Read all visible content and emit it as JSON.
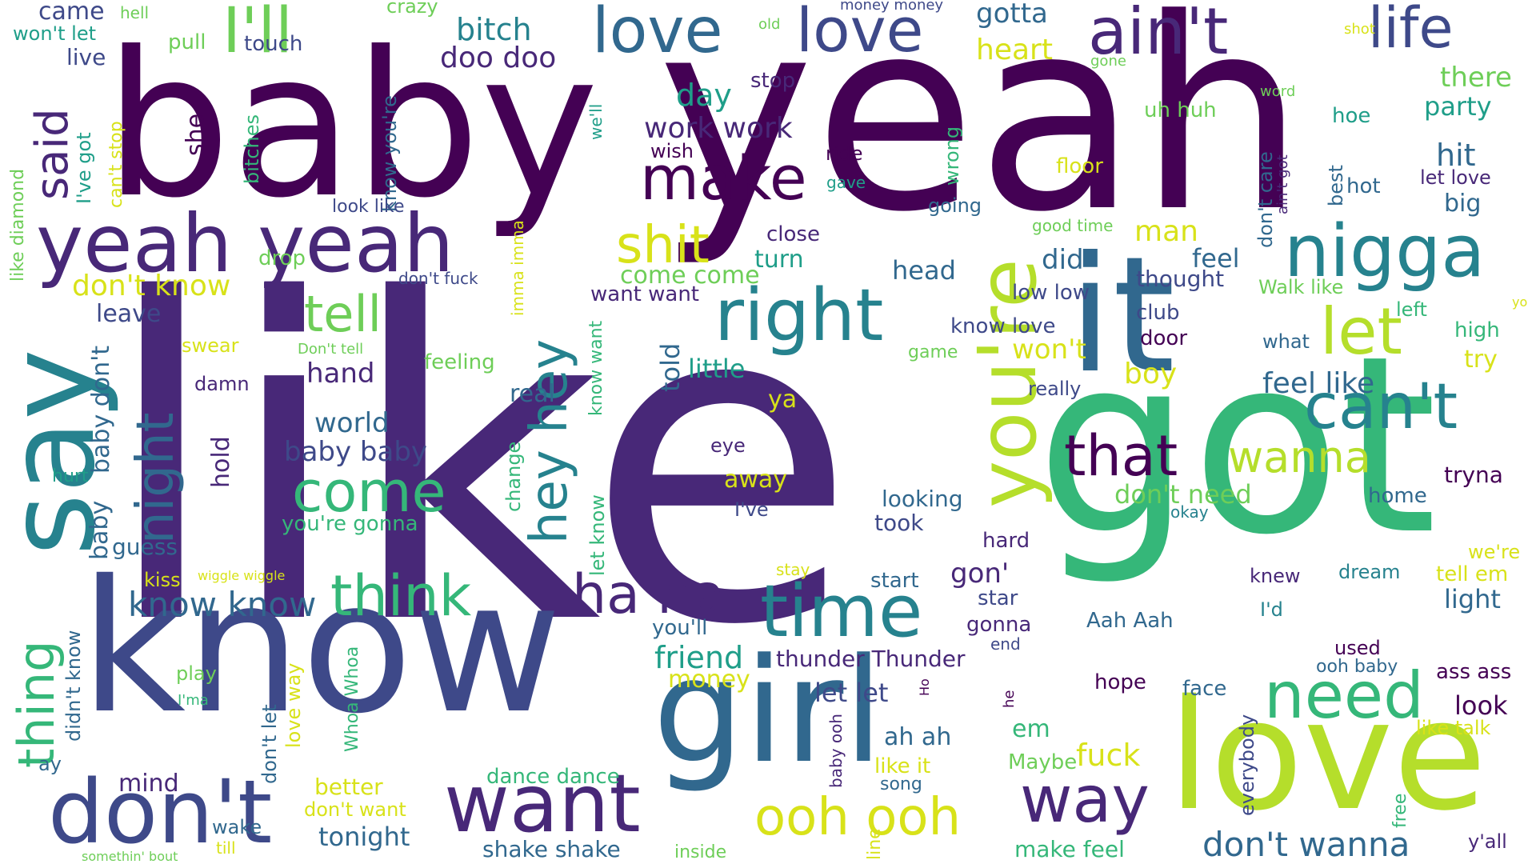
{
  "palette": {
    "d1": "#440154",
    "d2": "#482878",
    "p1": "#3e4989",
    "b1": "#31688e",
    "b2": "#26828e",
    "t1": "#1f9e89",
    "g1": "#35b779",
    "g2": "#6ece58",
    "y1": "#b5de2b",
    "y2": "#d8e219"
  },
  "words": [
    {
      "text": "like",
      "c": "d2",
      "size": 552,
      "rot": 0
    },
    {
      "text": "yeah",
      "c": "d1",
      "size": 330,
      "rot": 0
    },
    {
      "text": "baby",
      "c": "d1",
      "size": 250,
      "rot": 0
    },
    {
      "text": "got",
      "c": "g1",
      "size": 306,
      "rot": 0
    },
    {
      "text": "know",
      "c": "p1",
      "size": 228,
      "rot": 0
    },
    {
      "text": "girl",
      "c": "b1",
      "size": 180,
      "rot": 0
    },
    {
      "text": "love",
      "c": "y1",
      "size": 190,
      "rot": 0
    },
    {
      "text": "say",
      "c": "b2",
      "size": 150,
      "rot": -90
    },
    {
      "text": "it",
      "c": "b1",
      "size": 200,
      "rot": 0
    },
    {
      "text": "you're",
      "c": "y1",
      "size": 100,
      "rot": -90
    },
    {
      "text": "yeah yeah",
      "c": "d2",
      "size": 100,
      "rot": 0
    },
    {
      "text": "don't",
      "c": "p1",
      "size": 110,
      "rot": 0
    },
    {
      "text": "want",
      "c": "d2",
      "size": 100,
      "rot": 0
    },
    {
      "text": "right",
      "c": "b2",
      "size": 90,
      "rot": 0
    },
    {
      "text": "time",
      "c": "b2",
      "size": 90,
      "rot": 0
    },
    {
      "text": "nigga",
      "c": "b2",
      "size": 90,
      "rot": 0
    },
    {
      "text": "need",
      "c": "g1",
      "size": 80,
      "rot": 0
    },
    {
      "text": "way",
      "c": "d2",
      "size": 80,
      "rot": 0
    },
    {
      "text": "make",
      "c": "d1",
      "size": 76,
      "rot": 0
    },
    {
      "text": "ain't",
      "c": "d2",
      "size": 80,
      "rot": 0
    },
    {
      "text": "life",
      "c": "p1",
      "size": 70,
      "rot": 0
    },
    {
      "text": "love",
      "c": "b1",
      "size": 78,
      "rot": 0
    },
    {
      "text": "love",
      "c": "p1",
      "size": 76,
      "rot": 0
    },
    {
      "text": "I'll",
      "c": "g2",
      "size": 78,
      "rot": 0
    },
    {
      "text": "can't",
      "c": "b2",
      "size": 78,
      "rot": 0
    },
    {
      "text": "let",
      "c": "y1",
      "size": 80,
      "rot": 0
    },
    {
      "text": "that",
      "c": "d1",
      "size": 70,
      "rot": 0
    },
    {
      "text": "come",
      "c": "g1",
      "size": 70,
      "rot": 0
    },
    {
      "text": "think",
      "c": "g1",
      "size": 70,
      "rot": 0
    },
    {
      "text": "ha ha",
      "c": "d2",
      "size": 68,
      "rot": 0
    },
    {
      "text": "hey hey",
      "c": "b2",
      "size": 64,
      "rot": -90
    },
    {
      "text": "night",
      "c": "b1",
      "size": 64,
      "rot": -90
    },
    {
      "text": "thing",
      "c": "g1",
      "size": 62,
      "rot": -90
    },
    {
      "text": "ooh ooh",
      "c": "y2",
      "size": 64,
      "rot": 0
    },
    {
      "text": "shit",
      "c": "y2",
      "size": 64,
      "rot": 0
    },
    {
      "text": "tell",
      "c": "g2",
      "size": 62,
      "rot": 0
    },
    {
      "text": "said",
      "c": "d2",
      "size": 56,
      "rot": -90
    },
    {
      "text": "wanna",
      "c": "y1",
      "size": 54,
      "rot": 0
    },
    {
      "text": "don't wanna",
      "c": "b1",
      "size": 42,
      "rot": 0
    },
    {
      "text": "gotta",
      "c": "b1",
      "size": 34,
      "rot": 0
    },
    {
      "text": "heart",
      "c": "y2",
      "size": 36,
      "rot": 0
    },
    {
      "text": "there",
      "c": "g2",
      "size": 34,
      "rot": 0
    },
    {
      "text": "party",
      "c": "t1",
      "size": 32,
      "rot": 0
    },
    {
      "text": "hit",
      "c": "b1",
      "size": 38,
      "rot": 0
    },
    {
      "text": "hoe",
      "c": "t1",
      "size": 26,
      "rot": 0
    },
    {
      "text": "let love",
      "c": "d2",
      "size": 24,
      "rot": 0
    },
    {
      "text": "big",
      "c": "b1",
      "size": 30,
      "rot": 0
    },
    {
      "text": "hot",
      "c": "b1",
      "size": 26,
      "rot": 0
    },
    {
      "text": "tryna",
      "c": "d1",
      "size": 28,
      "rot": 0
    },
    {
      "text": "home",
      "c": "b1",
      "size": 26,
      "rot": 0
    },
    {
      "text": "don't need",
      "c": "g2",
      "size": 32,
      "rot": 0
    },
    {
      "text": "feel like",
      "c": "b1",
      "size": 36,
      "rot": 0
    },
    {
      "text": "won't",
      "c": "y2",
      "size": 34,
      "rot": 0
    },
    {
      "text": "boy",
      "c": "y2",
      "size": 36,
      "rot": 0
    },
    {
      "text": "did",
      "c": "b1",
      "size": 34,
      "rot": 0
    },
    {
      "text": "feel",
      "c": "b1",
      "size": 32,
      "rot": 0
    },
    {
      "text": "thought",
      "c": "p1",
      "size": 28,
      "rot": 0
    },
    {
      "text": "low low",
      "c": "p1",
      "size": 26,
      "rot": 0
    },
    {
      "text": "club",
      "c": "p1",
      "size": 26,
      "rot": 0
    },
    {
      "text": "door",
      "c": "d1",
      "size": 26,
      "rot": 0
    },
    {
      "text": "know love",
      "c": "p1",
      "size": 26,
      "rot": 0
    },
    {
      "text": "really",
      "c": "p1",
      "size": 24,
      "rot": 0
    },
    {
      "text": "floor",
      "c": "y2",
      "size": 26,
      "rot": 0
    },
    {
      "text": "gave",
      "c": "t1",
      "size": 20,
      "rot": 0
    },
    {
      "text": "going",
      "c": "b1",
      "size": 24,
      "rot": 0
    },
    {
      "text": "good time",
      "c": "g2",
      "size": 20,
      "rot": 0
    },
    {
      "text": "uh huh",
      "c": "g2",
      "size": 26,
      "rot": 0
    },
    {
      "text": "head",
      "c": "b1",
      "size": 32,
      "rot": 0
    },
    {
      "text": "man",
      "c": "y2",
      "size": 36,
      "rot": 0
    },
    {
      "text": "work work",
      "c": "d2",
      "size": 36,
      "rot": 0
    },
    {
      "text": "day",
      "c": "t1",
      "size": 38,
      "rot": 0
    },
    {
      "text": "stop",
      "c": "d2",
      "size": 26,
      "rot": 0
    },
    {
      "text": "wish",
      "c": "d1",
      "size": 24,
      "rot": 0
    },
    {
      "text": "ride",
      "c": "d1",
      "size": 24,
      "rot": 0
    },
    {
      "text": "close",
      "c": "d2",
      "size": 26,
      "rot": 0
    },
    {
      "text": "turn",
      "c": "t1",
      "size": 30,
      "rot": 0
    },
    {
      "text": "come come",
      "c": "g2",
      "size": 30,
      "rot": 0
    },
    {
      "text": "want want",
      "c": "d2",
      "size": 26,
      "rot": 0
    },
    {
      "text": "little",
      "c": "t1",
      "size": 32,
      "rot": 0
    },
    {
      "text": "game",
      "c": "g2",
      "size": 22,
      "rot": 0
    },
    {
      "text": "doo doo",
      "c": "d2",
      "size": 36,
      "rot": 0
    },
    {
      "text": "bitch",
      "c": "b2",
      "size": 38,
      "rot": 0
    },
    {
      "text": "crazy",
      "c": "g2",
      "size": 24,
      "rot": 0
    },
    {
      "text": "old",
      "c": "g2",
      "size": 18,
      "rot": 0
    },
    {
      "text": "money money",
      "c": "p1",
      "size": 18,
      "rot": 0
    },
    {
      "text": "gone",
      "c": "g2",
      "size": 18,
      "rot": 0
    },
    {
      "text": "shot",
      "c": "y2",
      "size": 18,
      "rot": 0
    },
    {
      "text": "word",
      "c": "g2",
      "size": 18,
      "rot": 0
    },
    {
      "text": "touch",
      "c": "p1",
      "size": 26,
      "rot": 0
    },
    {
      "text": "pull",
      "c": "g2",
      "size": 26,
      "rot": 0
    },
    {
      "text": "hell",
      "c": "g2",
      "size": 20,
      "rot": 0
    },
    {
      "text": "came",
      "c": "p1",
      "size": 30,
      "rot": 0
    },
    {
      "text": "won't let",
      "c": "t1",
      "size": 24,
      "rot": 0
    },
    {
      "text": "live",
      "c": "p1",
      "size": 28,
      "rot": 0
    },
    {
      "text": "she",
      "c": "d1",
      "size": 30,
      "rot": -90
    },
    {
      "text": "bitches",
      "c": "g1",
      "size": 24,
      "rot": -90
    },
    {
      "text": "can't stop",
      "c": "y2",
      "size": 22,
      "rot": -90
    },
    {
      "text": "I've got",
      "c": "t1",
      "size": 24,
      "rot": -90
    },
    {
      "text": "like diamond",
      "c": "g2",
      "size": 22,
      "rot": -90
    },
    {
      "text": "we'll",
      "c": "t1",
      "size": 20,
      "rot": -90
    },
    {
      "text": "know you're",
      "c": "b1",
      "size": 24,
      "rot": -90
    },
    {
      "text": "imma imma",
      "c": "y2",
      "size": 20,
      "rot": -90
    },
    {
      "text": "look like",
      "c": "p1",
      "size": 22,
      "rot": 0
    },
    {
      "text": "drop",
      "c": "g2",
      "size": 26,
      "rot": 0
    },
    {
      "text": "don't fuck",
      "c": "p1",
      "size": 20,
      "rot": 0
    },
    {
      "text": "don't know",
      "c": "y2",
      "size": 36,
      "rot": 0
    },
    {
      "text": "leave",
      "c": "p1",
      "size": 30,
      "rot": 0
    },
    {
      "text": "swear",
      "c": "y2",
      "size": 24,
      "rot": 0
    },
    {
      "text": "Don't tell",
      "c": "g2",
      "size": 18,
      "rot": 0
    },
    {
      "text": "hand",
      "c": "d2",
      "size": 34,
      "rot": 0
    },
    {
      "text": "feeling",
      "c": "g2",
      "size": 26,
      "rot": 0
    },
    {
      "text": "damn",
      "c": "d2",
      "size": 24,
      "rot": 0
    },
    {
      "text": "real",
      "c": "b1",
      "size": 30,
      "rot": 0
    },
    {
      "text": "told",
      "c": "b1",
      "size": 32,
      "rot": -90
    },
    {
      "text": "know want",
      "c": "g1",
      "size": 22,
      "rot": -90
    },
    {
      "text": "ya",
      "c": "y2",
      "size": 30,
      "rot": 0
    },
    {
      "text": "world",
      "c": "b1",
      "size": 34,
      "rot": 0
    },
    {
      "text": "baby baby",
      "c": "p1",
      "size": 34,
      "rot": 0
    },
    {
      "text": "hold",
      "c": "d2",
      "size": 30,
      "rot": -90
    },
    {
      "text": "baby don't",
      "c": "b1",
      "size": 30,
      "rot": -90
    },
    {
      "text": "hurt",
      "c": "t1",
      "size": 22,
      "rot": 0
    },
    {
      "text": "eye",
      "c": "d2",
      "size": 24,
      "rot": 0
    },
    {
      "text": "away",
      "c": "y2",
      "size": 30,
      "rot": 0
    },
    {
      "text": "I've",
      "c": "p1",
      "size": 24,
      "rot": 0
    },
    {
      "text": "change",
      "c": "g1",
      "size": 24,
      "rot": -90
    },
    {
      "text": "let know",
      "c": "g1",
      "size": 24,
      "rot": -90
    },
    {
      "text": "looking",
      "c": "b1",
      "size": 28,
      "rot": 0
    },
    {
      "text": "took",
      "c": "p1",
      "size": 28,
      "rot": 0
    },
    {
      "text": "okay",
      "c": "b2",
      "size": 20,
      "rot": 0
    },
    {
      "text": "you're gonna",
      "c": "g1",
      "size": 26,
      "rot": 0
    },
    {
      "text": "baby",
      "c": "b1",
      "size": 30,
      "rot": -90
    },
    {
      "text": "guess",
      "c": "b1",
      "size": 28,
      "rot": 0
    },
    {
      "text": "kiss",
      "c": "y2",
      "size": 24,
      "rot": 0
    },
    {
      "text": "wiggle wiggle",
      "c": "y2",
      "size": 16,
      "rot": 0
    },
    {
      "text": "know know",
      "c": "b1",
      "size": 42,
      "rot": 0
    },
    {
      "text": "hard",
      "c": "d2",
      "size": 26,
      "rot": 0
    },
    {
      "text": "gon'",
      "c": "d2",
      "size": 34,
      "rot": 0
    },
    {
      "text": "start",
      "c": "b1",
      "size": 26,
      "rot": 0
    },
    {
      "text": "stay",
      "c": "y2",
      "size": 20,
      "rot": 0
    },
    {
      "text": "star",
      "c": "p1",
      "size": 26,
      "rot": 0
    },
    {
      "text": "gonna",
      "c": "d2",
      "size": 26,
      "rot": 0
    },
    {
      "text": "end",
      "c": "p1",
      "size": 20,
      "rot": 0
    },
    {
      "text": "Aah Aah",
      "c": "b1",
      "size": 26,
      "rot": 0
    },
    {
      "text": "friend",
      "c": "t1",
      "size": 38,
      "rot": 0
    },
    {
      "text": "thunder Thunder",
      "c": "d2",
      "size": 28,
      "rot": 0
    },
    {
      "text": "you'll",
      "c": "b1",
      "size": 26,
      "rot": 0
    },
    {
      "text": "money",
      "c": "y2",
      "size": 30,
      "rot": 0
    },
    {
      "text": "let let",
      "c": "p1",
      "size": 32,
      "rot": 0
    },
    {
      "text": "hope",
      "c": "d1",
      "size": 26,
      "rot": 0
    },
    {
      "text": "he",
      "c": "d1",
      "size": 18,
      "rot": -90
    },
    {
      "text": "Ho",
      "c": "d1",
      "size": 16,
      "rot": -90
    },
    {
      "text": "face",
      "c": "b1",
      "size": 26,
      "rot": 0
    },
    {
      "text": "look",
      "c": "d1",
      "size": 32,
      "rot": 0
    },
    {
      "text": "ass ass",
      "c": "d1",
      "size": 26,
      "rot": 0
    },
    {
      "text": "ooh baby",
      "c": "b1",
      "size": 22,
      "rot": 0
    },
    {
      "text": "used",
      "c": "d1",
      "size": 24,
      "rot": 0
    },
    {
      "text": "like talk",
      "c": "y2",
      "size": 24,
      "rot": 0
    },
    {
      "text": "everybody",
      "c": "p1",
      "size": 24,
      "rot": -90
    },
    {
      "text": "free",
      "c": "g1",
      "size": 22,
      "rot": -90
    },
    {
      "text": "y'all",
      "c": "d2",
      "size": 24,
      "rot": 0
    },
    {
      "text": "we're",
      "c": "y2",
      "size": 24,
      "rot": 0
    },
    {
      "text": "tell em",
      "c": "y2",
      "size": 26,
      "rot": 0
    },
    {
      "text": "dream",
      "c": "b2",
      "size": 24,
      "rot": 0
    },
    {
      "text": "knew",
      "c": "d2",
      "size": 24,
      "rot": 0
    },
    {
      "text": "I'd",
      "c": "b2",
      "size": 24,
      "rot": 0
    },
    {
      "text": "light",
      "c": "b1",
      "size": 32,
      "rot": 0
    },
    {
      "text": "ah ah",
      "c": "b1",
      "size": 30,
      "rot": 0
    },
    {
      "text": "em",
      "c": "g1",
      "size": 30,
      "rot": 0
    },
    {
      "text": "fuck",
      "c": "y2",
      "size": 38,
      "rot": 0
    },
    {
      "text": "Maybe",
      "c": "g2",
      "size": 26,
      "rot": 0
    },
    {
      "text": "like it",
      "c": "y2",
      "size": 26,
      "rot": 0
    },
    {
      "text": "song",
      "c": "b1",
      "size": 22,
      "rot": 0
    },
    {
      "text": "baby ooh",
      "c": "d2",
      "size": 20,
      "rot": -90
    },
    {
      "text": "line",
      "c": "y2",
      "size": 22,
      "rot": -90
    },
    {
      "text": "don't care",
      "c": "b1",
      "size": 24,
      "rot": -90
    },
    {
      "text": "ain't got",
      "c": "d2",
      "size": 18,
      "rot": -90
    },
    {
      "text": "best",
      "c": "b1",
      "size": 24,
      "rot": -90
    },
    {
      "text": "wrong",
      "c": "g1",
      "size": 24,
      "rot": -90
    },
    {
      "text": "Walk like",
      "c": "g2",
      "size": 24,
      "rot": 0
    },
    {
      "text": "left",
      "c": "g1",
      "size": 24,
      "rot": 0
    },
    {
      "text": "what",
      "c": "b1",
      "size": 24,
      "rot": 0
    },
    {
      "text": "high",
      "c": "g1",
      "size": 26,
      "rot": 0
    },
    {
      "text": "try",
      "c": "y2",
      "size": 30,
      "rot": 0
    },
    {
      "text": "yo",
      "c": "y2",
      "size": 16,
      "rot": 0
    },
    {
      "text": "tonight",
      "c": "b1",
      "size": 32,
      "rot": 0
    },
    {
      "text": "better",
      "c": "y2",
      "size": 28,
      "rot": 0
    },
    {
      "text": "mind",
      "c": "d2",
      "size": 30,
      "rot": 0
    },
    {
      "text": "don't want",
      "c": "y2",
      "size": 24,
      "rot": 0
    },
    {
      "text": "dance dance",
      "c": "g1",
      "size": 26,
      "rot": 0
    },
    {
      "text": "shake shake",
      "c": "b1",
      "size": 28,
      "rot": 0
    },
    {
      "text": "inside",
      "c": "g2",
      "size": 22,
      "rot": 0
    },
    {
      "text": "make feel",
      "c": "g1",
      "size": 28,
      "rot": 0
    },
    {
      "text": "wake",
      "c": "b1",
      "size": 24,
      "rot": 0
    },
    {
      "text": "till",
      "c": "y2",
      "size": 20,
      "rot": 0
    },
    {
      "text": "somethin' bout",
      "c": "g2",
      "size": 16,
      "rot": 0
    },
    {
      "text": "play",
      "c": "g2",
      "size": 24,
      "rot": 0
    },
    {
      "text": "I'ma",
      "c": "g1",
      "size": 18,
      "rot": 0
    },
    {
      "text": "ay",
      "c": "b1",
      "size": 24,
      "rot": 0
    },
    {
      "text": "didn't know",
      "c": "b1",
      "size": 24,
      "rot": -90
    },
    {
      "text": "don't let",
      "c": "b1",
      "size": 24,
      "rot": -90
    },
    {
      "text": "love way",
      "c": "y2",
      "size": 24,
      "rot": -90
    },
    {
      "text": "Whoa Whoa",
      "c": "g1",
      "size": 22,
      "rot": -90
    }
  ]
}
